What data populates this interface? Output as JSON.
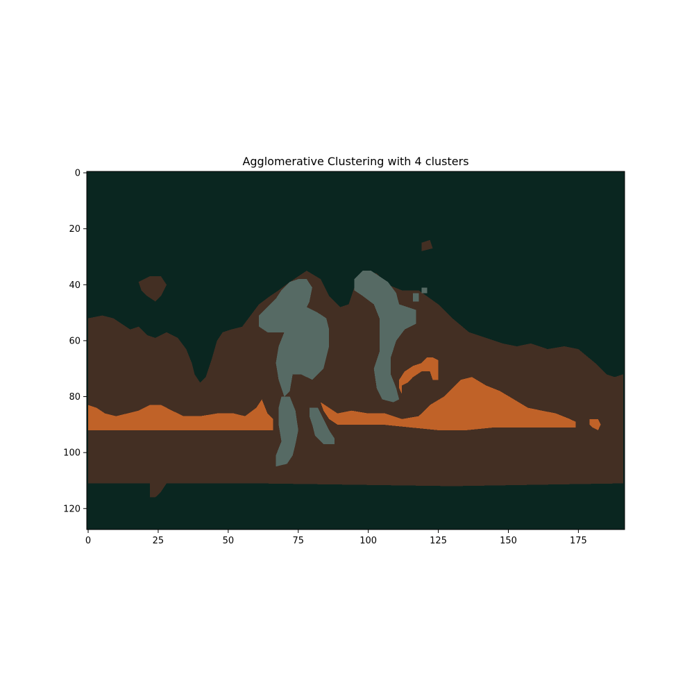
{
  "chart_data": {
    "type": "heatmap",
    "title": "Agglomerative Clustering with 4 clusters",
    "xlabel": "",
    "ylabel": "",
    "xlim": [
      -0.5,
      191.5
    ],
    "ylim": [
      127.5,
      -0.5
    ],
    "x_ticks": [
      0,
      25,
      50,
      75,
      100,
      125,
      150,
      175
    ],
    "y_ticks": [
      0,
      20,
      40,
      60,
      80,
      100,
      120
    ],
    "grid": false,
    "colors": {
      "cluster_0": "#0a2620",
      "cluster_1": "#432f23",
      "cluster_2": "#c06228",
      "cluster_3": "#566a64"
    },
    "regions": [
      {
        "cluster": "cluster_1",
        "name": "land-band",
        "polygon": [
          [
            0,
            52
          ],
          [
            5,
            51
          ],
          [
            9,
            52
          ],
          [
            12,
            54
          ],
          [
            15,
            56
          ],
          [
            18,
            55
          ],
          [
            21,
            58
          ],
          [
            24,
            59
          ],
          [
            28,
            57
          ],
          [
            32,
            59
          ],
          [
            35,
            63
          ],
          [
            37,
            68
          ],
          [
            38,
            72
          ],
          [
            40,
            75
          ],
          [
            42,
            73
          ],
          [
            44,
            67
          ],
          [
            46,
            60
          ],
          [
            48,
            57
          ],
          [
            51,
            56
          ],
          [
            55,
            55
          ],
          [
            58,
            51
          ],
          [
            61,
            47
          ],
          [
            65,
            44
          ],
          [
            68,
            42
          ],
          [
            72,
            39
          ],
          [
            78,
            35
          ],
          [
            83,
            38
          ],
          [
            86,
            44
          ],
          [
            90,
            48
          ],
          [
            93,
            47
          ],
          [
            96,
            38
          ],
          [
            99,
            35
          ],
          [
            103,
            36
          ],
          [
            107,
            40
          ],
          [
            112,
            42
          ],
          [
            118,
            42
          ],
          [
            125,
            47
          ],
          [
            130,
            52
          ],
          [
            136,
            57
          ],
          [
            142,
            59
          ],
          [
            148,
            61
          ],
          [
            153,
            62
          ],
          [
            158,
            61
          ],
          [
            164,
            63
          ],
          [
            170,
            62
          ],
          [
            175,
            63
          ],
          [
            181,
            68
          ],
          [
            185,
            72
          ],
          [
            188,
            73
          ],
          [
            191,
            72
          ],
          [
            191,
            111
          ],
          [
            130,
            112
          ],
          [
            60,
            111
          ],
          [
            25,
            111
          ],
          [
            0,
            111
          ]
        ]
      },
      {
        "cluster": "cluster_1",
        "name": "island-left",
        "polygon": [
          [
            18,
            39
          ],
          [
            22,
            37
          ],
          [
            26,
            37
          ],
          [
            28,
            40
          ],
          [
            26,
            44
          ],
          [
            24,
            46
          ],
          [
            21,
            44
          ],
          [
            19,
            42
          ]
        ]
      },
      {
        "cluster": "cluster_1",
        "name": "island-top",
        "polygon": [
          [
            119,
            25
          ],
          [
            122,
            24
          ],
          [
            123,
            27
          ],
          [
            119,
            28
          ]
        ]
      },
      {
        "cluster": "cluster_1",
        "name": "tail-bottom",
        "polygon": [
          [
            22,
            111
          ],
          [
            28,
            111
          ],
          [
            26,
            114
          ],
          [
            24,
            116
          ],
          [
            22,
            116
          ]
        ]
      },
      {
        "cluster": "cluster_2",
        "name": "orange-band-left",
        "polygon": [
          [
            0,
            83
          ],
          [
            3,
            84
          ],
          [
            6,
            86
          ],
          [
            10,
            87
          ],
          [
            14,
            86
          ],
          [
            18,
            85
          ],
          [
            22,
            83
          ],
          [
            26,
            83
          ],
          [
            30,
            85
          ],
          [
            34,
            87
          ],
          [
            40,
            87
          ],
          [
            46,
            86
          ],
          [
            52,
            86
          ],
          [
            56,
            87
          ],
          [
            60,
            84
          ],
          [
            62,
            81
          ],
          [
            64,
            86
          ],
          [
            66,
            88
          ],
          [
            66,
            92
          ],
          [
            55,
            92
          ],
          [
            40,
            92
          ],
          [
            25,
            92
          ],
          [
            12,
            92
          ],
          [
            0,
            92
          ]
        ]
      },
      {
        "cluster": "cluster_2",
        "name": "orange-band-right",
        "polygon": [
          [
            83,
            82
          ],
          [
            86,
            84
          ],
          [
            89,
            86
          ],
          [
            94,
            85
          ],
          [
            100,
            86
          ],
          [
            106,
            86
          ],
          [
            112,
            88
          ],
          [
            118,
            87
          ],
          [
            122,
            83
          ],
          [
            127,
            80
          ],
          [
            130,
            77
          ],
          [
            133,
            74
          ],
          [
            137,
            73
          ],
          [
            142,
            76
          ],
          [
            147,
            78
          ],
          [
            152,
            81
          ],
          [
            157,
            84
          ],
          [
            162,
            85
          ],
          [
            167,
            86
          ],
          [
            172,
            88
          ],
          [
            174,
            89
          ],
          [
            174,
            91
          ],
          [
            165,
            91
          ],
          [
            155,
            91
          ],
          [
            145,
            91
          ],
          [
            135,
            92
          ],
          [
            125,
            92
          ],
          [
            115,
            91
          ],
          [
            105,
            90
          ],
          [
            95,
            90
          ],
          [
            89,
            90
          ],
          [
            86,
            88
          ],
          [
            84,
            85
          ]
        ]
      },
      {
        "cluster": "cluster_2",
        "name": "orange-arc",
        "polygon": [
          [
            111,
            74
          ],
          [
            113,
            71
          ],
          [
            116,
            69
          ],
          [
            119,
            68
          ],
          [
            121,
            66
          ],
          [
            123,
            66
          ],
          [
            125,
            67
          ],
          [
            125,
            70
          ],
          [
            125,
            74
          ],
          [
            123,
            74
          ],
          [
            122,
            71
          ],
          [
            119,
            71
          ],
          [
            116,
            73
          ],
          [
            114,
            75
          ],
          [
            112,
            76
          ],
          [
            112,
            79
          ],
          [
            111,
            77
          ]
        ]
      },
      {
        "cluster": "cluster_2",
        "name": "orange-spot",
        "polygon": [
          [
            179,
            88
          ],
          [
            182,
            88
          ],
          [
            183,
            90
          ],
          [
            182,
            92
          ],
          [
            180,
            91
          ],
          [
            179,
            90
          ]
        ]
      },
      {
        "cluster": "cluster_3",
        "name": "gray-body-left",
        "polygon": [
          [
            61,
            51
          ],
          [
            64,
            48
          ],
          [
            67,
            45
          ],
          [
            69,
            42
          ],
          [
            72,
            39
          ],
          [
            75,
            38
          ],
          [
            78,
            38
          ],
          [
            80,
            41
          ],
          [
            79,
            46
          ],
          [
            78,
            48
          ],
          [
            82,
            50
          ],
          [
            85,
            52
          ],
          [
            86,
            56
          ],
          [
            86,
            62
          ],
          [
            84,
            70
          ],
          [
            80,
            74
          ],
          [
            76,
            72
          ],
          [
            73,
            72
          ],
          [
            72,
            78
          ],
          [
            70,
            80
          ],
          [
            68,
            74
          ],
          [
            67,
            68
          ],
          [
            68,
            62
          ],
          [
            70,
            57
          ],
          [
            64,
            57
          ],
          [
            61,
            55
          ]
        ]
      },
      {
        "cluster": "cluster_3",
        "name": "gray-leg-left",
        "polygon": [
          [
            69,
            80
          ],
          [
            72,
            80
          ],
          [
            74,
            85
          ],
          [
            75,
            92
          ],
          [
            74,
            97
          ],
          [
            73,
            101
          ],
          [
            71,
            104
          ],
          [
            67,
            105
          ],
          [
            67,
            101
          ],
          [
            69,
            96
          ],
          [
            68,
            90
          ],
          [
            68,
            84
          ]
        ]
      },
      {
        "cluster": "cluster_3",
        "name": "gray-leg-right",
        "polygon": [
          [
            79,
            84
          ],
          [
            82,
            84
          ],
          [
            84,
            88
          ],
          [
            86,
            92
          ],
          [
            88,
            95
          ],
          [
            88,
            97
          ],
          [
            84,
            97
          ],
          [
            81,
            94
          ],
          [
            80,
            90
          ],
          [
            79,
            87
          ]
        ]
      },
      {
        "cluster": "cluster_3",
        "name": "gray-body-right",
        "polygon": [
          [
            95,
            38
          ],
          [
            98,
            35
          ],
          [
            101,
            35
          ],
          [
            104,
            37
          ],
          [
            107,
            39
          ],
          [
            110,
            43
          ],
          [
            111,
            47
          ],
          [
            114,
            48
          ],
          [
            117,
            49
          ],
          [
            117,
            54
          ],
          [
            113,
            56
          ],
          [
            110,
            60
          ],
          [
            108,
            66
          ],
          [
            108,
            72
          ],
          [
            110,
            77
          ],
          [
            111,
            81
          ],
          [
            109,
            82
          ],
          [
            105,
            81
          ],
          [
            103,
            77
          ],
          [
            102,
            70
          ],
          [
            104,
            64
          ],
          [
            104,
            58
          ],
          [
            104,
            52
          ],
          [
            102,
            47
          ],
          [
            98,
            44
          ],
          [
            95,
            42
          ]
        ]
      },
      {
        "cluster": "cluster_3",
        "name": "gray-fleck-a",
        "polygon": [
          [
            116,
            43
          ],
          [
            118,
            43
          ],
          [
            118,
            46
          ],
          [
            116,
            46
          ]
        ]
      },
      {
        "cluster": "cluster_3",
        "name": "gray-fleck-b",
        "polygon": [
          [
            119,
            41
          ],
          [
            121,
            41
          ],
          [
            121,
            43
          ],
          [
            119,
            43
          ]
        ]
      }
    ]
  }
}
